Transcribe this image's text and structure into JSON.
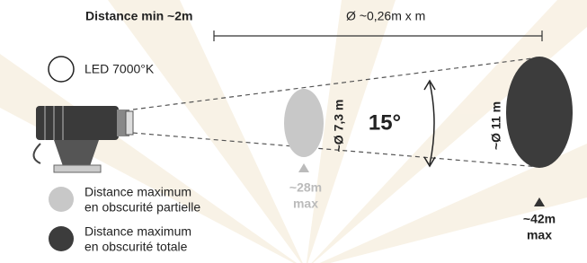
{
  "header": {
    "min_distance": "Distance min ~2m",
    "diameter_formula": "Ø ~0,26m x m"
  },
  "light": {
    "label": "LED 7000°K"
  },
  "beam": {
    "angle": "15°"
  },
  "partial": {
    "diameter": "~Ø 7,3 m",
    "distance": "~28m",
    "distance_suffix": "max"
  },
  "total": {
    "diameter": "~Ø 11 m",
    "distance": "~42m",
    "distance_suffix": "max"
  },
  "legend": [
    {
      "line1": "Distance maximum",
      "line2": "en obscurité partielle"
    },
    {
      "line1": "Distance maximum",
      "line2": "en obscurité totale"
    }
  ]
}
